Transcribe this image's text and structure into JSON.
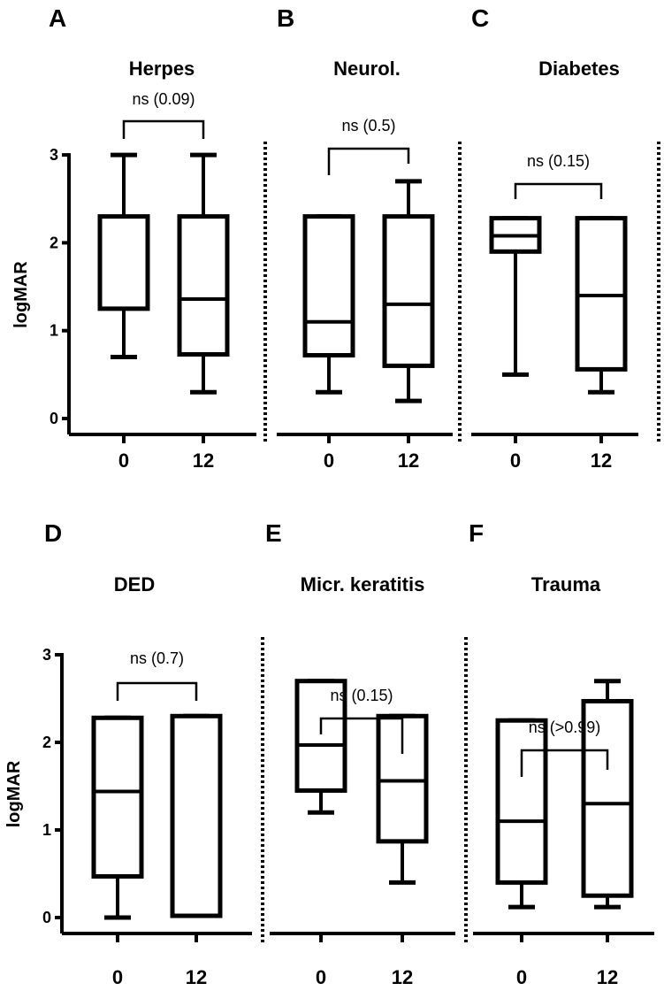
{
  "chart_data": [
    {
      "type": "box",
      "panel": "A",
      "title": "Herpes",
      "categories": [
        "0",
        "12"
      ],
      "ylabel": "logMAR",
      "yticks": [
        "0",
        "1",
        "2",
        "3"
      ],
      "ylim": [
        0,
        3
      ],
      "significance": "ns (0.09)",
      "series": [
        {
          "name": "0",
          "min": 0.7,
          "q1": 1.25,
          "median": 2.3,
          "q3": 2.3,
          "max": 3.0
        },
        {
          "name": "12",
          "min": 0.3,
          "q1": 0.73,
          "median": 1.36,
          "q3": 2.3,
          "max": 3.0
        }
      ]
    },
    {
      "type": "box",
      "panel": "B",
      "title": "Neurol.",
      "categories": [
        "0",
        "12"
      ],
      "ylim": [
        0,
        3
      ],
      "significance": "ns (0.5)",
      "series": [
        {
          "name": "0",
          "min": 0.3,
          "q1": 0.72,
          "median": 1.1,
          "q3": 2.3,
          "max": 2.3
        },
        {
          "name": "12",
          "min": 0.2,
          "q1": 0.6,
          "median": 1.3,
          "q3": 2.3,
          "max": 2.7
        }
      ]
    },
    {
      "type": "box",
      "panel": "C",
      "title": "Diabetes",
      "categories": [
        "0",
        "12"
      ],
      "ylim": [
        0,
        3
      ],
      "significance": "ns (0.15)",
      "series": [
        {
          "name": "0",
          "min": 0.5,
          "q1": 1.9,
          "median": 2.08,
          "q3": 2.28,
          "max": 2.28
        },
        {
          "name": "12",
          "min": 0.3,
          "q1": 0.56,
          "median": 1.4,
          "q3": 2.28,
          "max": 2.28
        }
      ]
    },
    {
      "type": "box",
      "panel": "D",
      "title": "DED",
      "categories": [
        "0",
        "12"
      ],
      "ylabel": "logMAR",
      "yticks": [
        "0",
        "1",
        "2",
        "3"
      ],
      "ylim": [
        0,
        3
      ],
      "significance": "ns (0.7)",
      "series": [
        {
          "name": "0",
          "min": 0.0,
          "q1": 0.47,
          "median": 1.44,
          "q3": 2.28,
          "max": 2.28
        },
        {
          "name": "12",
          "min": 0.02,
          "q1": 0.02,
          "median": 2.3,
          "q3": 2.3,
          "max": 2.3
        }
      ]
    },
    {
      "type": "box",
      "panel": "E",
      "title": "Micr. keratitis",
      "categories": [
        "0",
        "12"
      ],
      "ylim": [
        0,
        3
      ],
      "significance": "ns (0.15)",
      "series": [
        {
          "name": "0",
          "min": 1.2,
          "q1": 1.45,
          "median": 1.97,
          "q3": 2.7,
          "max": 2.7
        },
        {
          "name": "12",
          "min": 0.4,
          "q1": 0.87,
          "median": 1.56,
          "q3": 2.3,
          "max": 2.3
        }
      ]
    },
    {
      "type": "box",
      "panel": "F",
      "title": "Trauma",
      "categories": [
        "0",
        "12"
      ],
      "ylim": [
        0,
        3
      ],
      "significance": "ns (>0.99)",
      "series": [
        {
          "name": "0",
          "min": 0.12,
          "q1": 0.4,
          "median": 1.1,
          "q3": 2.25,
          "max": 2.25
        },
        {
          "name": "12",
          "min": 0.12,
          "q1": 0.25,
          "median": 1.3,
          "q3": 2.47,
          "max": 2.7
        }
      ]
    }
  ]
}
